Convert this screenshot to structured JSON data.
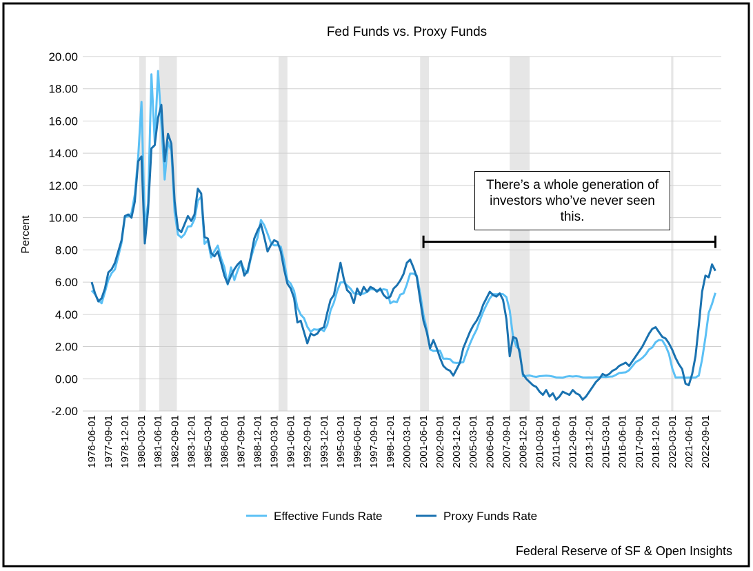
{
  "chart_data": {
    "type": "line",
    "title": "Fed Funds vs. Proxy Funds",
    "y_label": "Percent",
    "source": "Federal Reserve of SF & Open Insights",
    "annotation": {
      "text": "There’s a whole generation of investors who’ve never seen this.",
      "start": "2001-06-01",
      "end": "2023-06-01",
      "value": 8.5
    },
    "shaded_periods": [
      {
        "start": "1980-01-01",
        "end": "1980-07-01"
      },
      {
        "start": "1981-07-01",
        "end": "1982-11-01"
      },
      {
        "start": "1990-07-01",
        "end": "1991-03-01"
      },
      {
        "start": "2001-03-01",
        "end": "2001-11-01"
      },
      {
        "start": "2007-12-01",
        "end": "2009-06-01"
      },
      {
        "start": "2020-02-01",
        "end": "2020-04-01"
      }
    ],
    "grid": true,
    "legend": "bottom",
    "ylim": [
      -2,
      20
    ],
    "yticks": [
      {
        "value": -2,
        "label": "-2.00"
      },
      {
        "value": 0,
        "label": "0.00"
      },
      {
        "value": 2,
        "label": "2.00"
      },
      {
        "value": 4,
        "label": "4.00"
      },
      {
        "value": 6,
        "label": "6.00"
      },
      {
        "value": 8,
        "label": "8.00"
      },
      {
        "value": 10,
        "label": "10.00"
      },
      {
        "value": 12,
        "label": "12.00"
      },
      {
        "value": 14,
        "label": "14.00"
      },
      {
        "value": 16,
        "label": "16.00"
      },
      {
        "value": 18,
        "label": "18.00"
      },
      {
        "value": 20,
        "label": "20.00"
      }
    ],
    "xticks": [
      "1976-06-01",
      "1977-09-01",
      "1978-12-01",
      "1980-03-01",
      "1981-06-01",
      "1982-09-01",
      "1983-12-01",
      "1985-03-01",
      "1986-06-01",
      "1987-09-01",
      "1988-12-01",
      "1990-03-01",
      "1991-06-01",
      "1992-09-01",
      "1993-12-01",
      "1995-03-01",
      "1996-06-01",
      "1997-09-01",
      "1998-12-01",
      "2000-03-01",
      "2001-06-01",
      "2002-09-01",
      "2003-12-01",
      "2005-03-01",
      "2006-06-01",
      "2007-09-01",
      "2008-12-01",
      "2010-03-01",
      "2011-06-01",
      "2012-09-01",
      "2013-12-01",
      "2015-03-01",
      "2016-06-01",
      "2017-09-01",
      "2018-12-01",
      "2020-03-01",
      "2021-06-01",
      "2022-09-01"
    ],
    "x": [
      "1976-06-01",
      "1976-09-01",
      "1976-12-01",
      "1977-03-01",
      "1977-06-01",
      "1977-09-01",
      "1977-12-01",
      "1978-03-01",
      "1978-06-01",
      "1978-09-01",
      "1978-12-01",
      "1979-03-01",
      "1979-06-01",
      "1979-09-01",
      "1979-12-01",
      "1980-03-01",
      "1980-06-01",
      "1980-09-01",
      "1980-12-01",
      "1981-03-01",
      "1981-06-01",
      "1981-09-01",
      "1981-12-01",
      "1982-03-01",
      "1982-06-01",
      "1982-09-01",
      "1982-12-01",
      "1983-03-01",
      "1983-06-01",
      "1983-09-01",
      "1983-12-01",
      "1984-03-01",
      "1984-06-01",
      "1984-09-01",
      "1984-12-01",
      "1985-03-01",
      "1985-06-01",
      "1985-09-01",
      "1985-12-01",
      "1986-03-01",
      "1986-06-01",
      "1986-09-01",
      "1986-12-01",
      "1987-03-01",
      "1987-06-01",
      "1987-09-01",
      "1987-12-01",
      "1988-03-01",
      "1988-06-01",
      "1988-09-01",
      "1988-12-01",
      "1989-03-01",
      "1989-06-01",
      "1989-09-01",
      "1989-12-01",
      "1990-03-01",
      "1990-06-01",
      "1990-09-01",
      "1990-12-01",
      "1991-03-01",
      "1991-06-01",
      "1991-09-01",
      "1991-12-01",
      "1992-03-01",
      "1992-06-01",
      "1992-09-01",
      "1992-12-01",
      "1993-03-01",
      "1993-06-01",
      "1993-09-01",
      "1993-12-01",
      "1994-03-01",
      "1994-06-01",
      "1994-09-01",
      "1994-12-01",
      "1995-03-01",
      "1995-06-01",
      "1995-09-01",
      "1995-12-01",
      "1996-03-01",
      "1996-06-01",
      "1996-09-01",
      "1996-12-01",
      "1997-03-01",
      "1997-06-01",
      "1997-09-01",
      "1997-12-01",
      "1998-03-01",
      "1998-06-01",
      "1998-09-01",
      "1998-12-01",
      "1999-03-01",
      "1999-06-01",
      "1999-09-01",
      "1999-12-01",
      "2000-03-01",
      "2000-06-01",
      "2000-09-01",
      "2000-12-01",
      "2001-03-01",
      "2001-06-01",
      "2001-09-01",
      "2001-12-01",
      "2002-03-01",
      "2002-06-01",
      "2002-09-01",
      "2002-12-01",
      "2003-03-01",
      "2003-06-01",
      "2003-09-01",
      "2003-12-01",
      "2004-03-01",
      "2004-06-01",
      "2004-09-01",
      "2004-12-01",
      "2005-03-01",
      "2005-06-01",
      "2005-09-01",
      "2005-12-01",
      "2006-03-01",
      "2006-06-01",
      "2006-09-01",
      "2006-12-01",
      "2007-03-01",
      "2007-06-01",
      "2007-09-01",
      "2007-12-01",
      "2008-03-01",
      "2008-06-01",
      "2008-09-01",
      "2008-12-01",
      "2009-03-01",
      "2009-06-01",
      "2009-09-01",
      "2009-12-01",
      "2010-03-01",
      "2010-06-01",
      "2010-09-01",
      "2010-12-01",
      "2011-03-01",
      "2011-06-01",
      "2011-09-01",
      "2011-12-01",
      "2012-03-01",
      "2012-06-01",
      "2012-09-01",
      "2012-12-01",
      "2013-03-01",
      "2013-06-01",
      "2013-09-01",
      "2013-12-01",
      "2014-03-01",
      "2014-06-01",
      "2014-09-01",
      "2014-12-01",
      "2015-03-01",
      "2015-06-01",
      "2015-09-01",
      "2015-12-01",
      "2016-03-01",
      "2016-06-01",
      "2016-09-01",
      "2016-12-01",
      "2017-03-01",
      "2017-06-01",
      "2017-09-01",
      "2017-12-01",
      "2018-03-01",
      "2018-06-01",
      "2018-09-01",
      "2018-12-01",
      "2019-03-01",
      "2019-06-01",
      "2019-09-01",
      "2019-12-01",
      "2020-03-01",
      "2020-06-01",
      "2020-09-01",
      "2020-12-01",
      "2021-03-01",
      "2021-06-01",
      "2021-09-01",
      "2021-12-01",
      "2022-03-01",
      "2022-06-01",
      "2022-09-01",
      "2022-12-01",
      "2023-03-01",
      "2023-06-01"
    ],
    "series": [
      {
        "name": "Effective Funds Rate",
        "color": "#5bc0f5",
        "values": [
          5.48,
          5.25,
          4.87,
          4.69,
          5.39,
          6.14,
          6.56,
          6.79,
          7.6,
          8.45,
          10.03,
          10.09,
          10.29,
          11.43,
          13.78,
          17.19,
          9.47,
          10.87,
          18.9,
          14.7,
          19.1,
          15.87,
          12.37,
          14.68,
          14.15,
          10.31,
          8.95,
          8.77,
          8.98,
          9.45,
          9.47,
          9.91,
          11.06,
          11.3,
          8.38,
          8.58,
          7.53,
          7.92,
          8.27,
          7.48,
          6.92,
          5.85,
          6.91,
          6.13,
          6.73,
          7.22,
          6.77,
          6.58,
          7.5,
          8.19,
          8.76,
          9.85,
          9.53,
          9.01,
          8.45,
          8.28,
          8.29,
          8.2,
          7.31,
          6.12,
          5.9,
          5.45,
          4.43,
          3.98,
          3.76,
          3.22,
          2.92,
          3.07,
          3.04,
          3.09,
          2.96,
          3.34,
          4.25,
          4.73,
          5.45,
          5.98,
          6.0,
          5.8,
          5.6,
          5.31,
          5.27,
          5.24,
          5.29,
          5.39,
          5.56,
          5.54,
          5.5,
          5.49,
          5.56,
          5.51,
          4.68,
          4.81,
          4.76,
          5.22,
          5.3,
          5.85,
          6.53,
          6.52,
          6.4,
          5.31,
          3.97,
          3.07,
          1.82,
          1.73,
          1.75,
          1.75,
          1.24,
          1.25,
          1.22,
          1.01,
          0.98,
          1.0,
          1.03,
          1.61,
          2.16,
          2.63,
          3.04,
          3.62,
          4.16,
          4.59,
          4.99,
          5.25,
          5.24,
          5.26,
          5.25,
          5.07,
          4.24,
          2.61,
          2.0,
          1.81,
          0.16,
          0.18,
          0.21,
          0.15,
          0.12,
          0.16,
          0.18,
          0.19,
          0.18,
          0.14,
          0.09,
          0.08,
          0.07,
          0.13,
          0.16,
          0.14,
          0.16,
          0.14,
          0.09,
          0.08,
          0.09,
          0.08,
          0.1,
          0.09,
          0.12,
          0.11,
          0.13,
          0.14,
          0.24,
          0.36,
          0.38,
          0.4,
          0.54,
          0.79,
          1.04,
          1.15,
          1.3,
          1.51,
          1.82,
          1.95,
          2.27,
          2.41,
          2.38,
          2.04,
          1.55,
          0.65,
          0.08,
          0.09,
          0.09,
          0.07,
          0.08,
          0.08,
          0.08,
          0.2,
          1.21,
          2.56,
          4.1,
          4.65,
          5.33
        ]
      },
      {
        "name": "Proxy Funds Rate",
        "color": "#1a72b0",
        "values": [
          6.0,
          5.3,
          4.8,
          5.0,
          5.6,
          6.6,
          6.8,
          7.2,
          7.9,
          8.6,
          10.1,
          10.2,
          10.0,
          11.0,
          13.5,
          13.8,
          8.4,
          10.5,
          14.3,
          14.5,
          16.2,
          17.0,
          13.5,
          15.2,
          14.6,
          11.0,
          9.3,
          9.1,
          9.6,
          10.1,
          9.8,
          10.2,
          11.8,
          11.5,
          8.8,
          8.7,
          7.8,
          7.6,
          7.9,
          7.2,
          6.4,
          5.9,
          6.4,
          6.8,
          7.1,
          7.3,
          6.4,
          6.7,
          7.6,
          8.7,
          9.2,
          9.6,
          8.8,
          7.9,
          8.3,
          8.6,
          8.5,
          7.9,
          6.8,
          5.9,
          5.6,
          5.0,
          3.5,
          3.6,
          2.9,
          2.2,
          2.8,
          2.7,
          2.8,
          3.1,
          3.2,
          4.1,
          4.9,
          5.2,
          6.2,
          7.2,
          6.2,
          5.5,
          5.3,
          4.7,
          5.6,
          5.2,
          5.7,
          5.4,
          5.7,
          5.6,
          5.4,
          5.6,
          5.2,
          5.0,
          5.1,
          5.6,
          5.8,
          6.1,
          6.5,
          7.2,
          7.4,
          6.9,
          6.3,
          4.9,
          3.6,
          2.9,
          1.9,
          2.4,
          1.9,
          1.3,
          0.8,
          0.6,
          0.5,
          0.2,
          0.6,
          1.0,
          1.9,
          2.4,
          2.9,
          3.3,
          3.6,
          4.0,
          4.6,
          5.0,
          5.4,
          5.2,
          5.1,
          5.3,
          4.9,
          3.7,
          1.4,
          2.6,
          2.5,
          1.6,
          0.3,
          0.0,
          -0.2,
          -0.4,
          -0.5,
          -0.8,
          -1.0,
          -0.7,
          -1.1,
          -0.9,
          -1.3,
          -1.1,
          -0.8,
          -0.9,
          -1.0,
          -0.7,
          -0.9,
          -1.0,
          -1.3,
          -1.1,
          -0.8,
          -0.5,
          -0.2,
          0.0,
          0.3,
          0.2,
          0.3,
          0.5,
          0.6,
          0.8,
          0.9,
          1.0,
          0.8,
          1.1,
          1.4,
          1.7,
          2.0,
          2.4,
          2.8,
          3.1,
          3.2,
          2.9,
          2.6,
          2.5,
          2.2,
          1.8,
          1.3,
          0.9,
          0.6,
          -0.3,
          -0.4,
          0.3,
          1.4,
          3.3,
          5.4,
          6.4,
          6.3,
          7.1,
          6.7
        ]
      }
    ]
  }
}
